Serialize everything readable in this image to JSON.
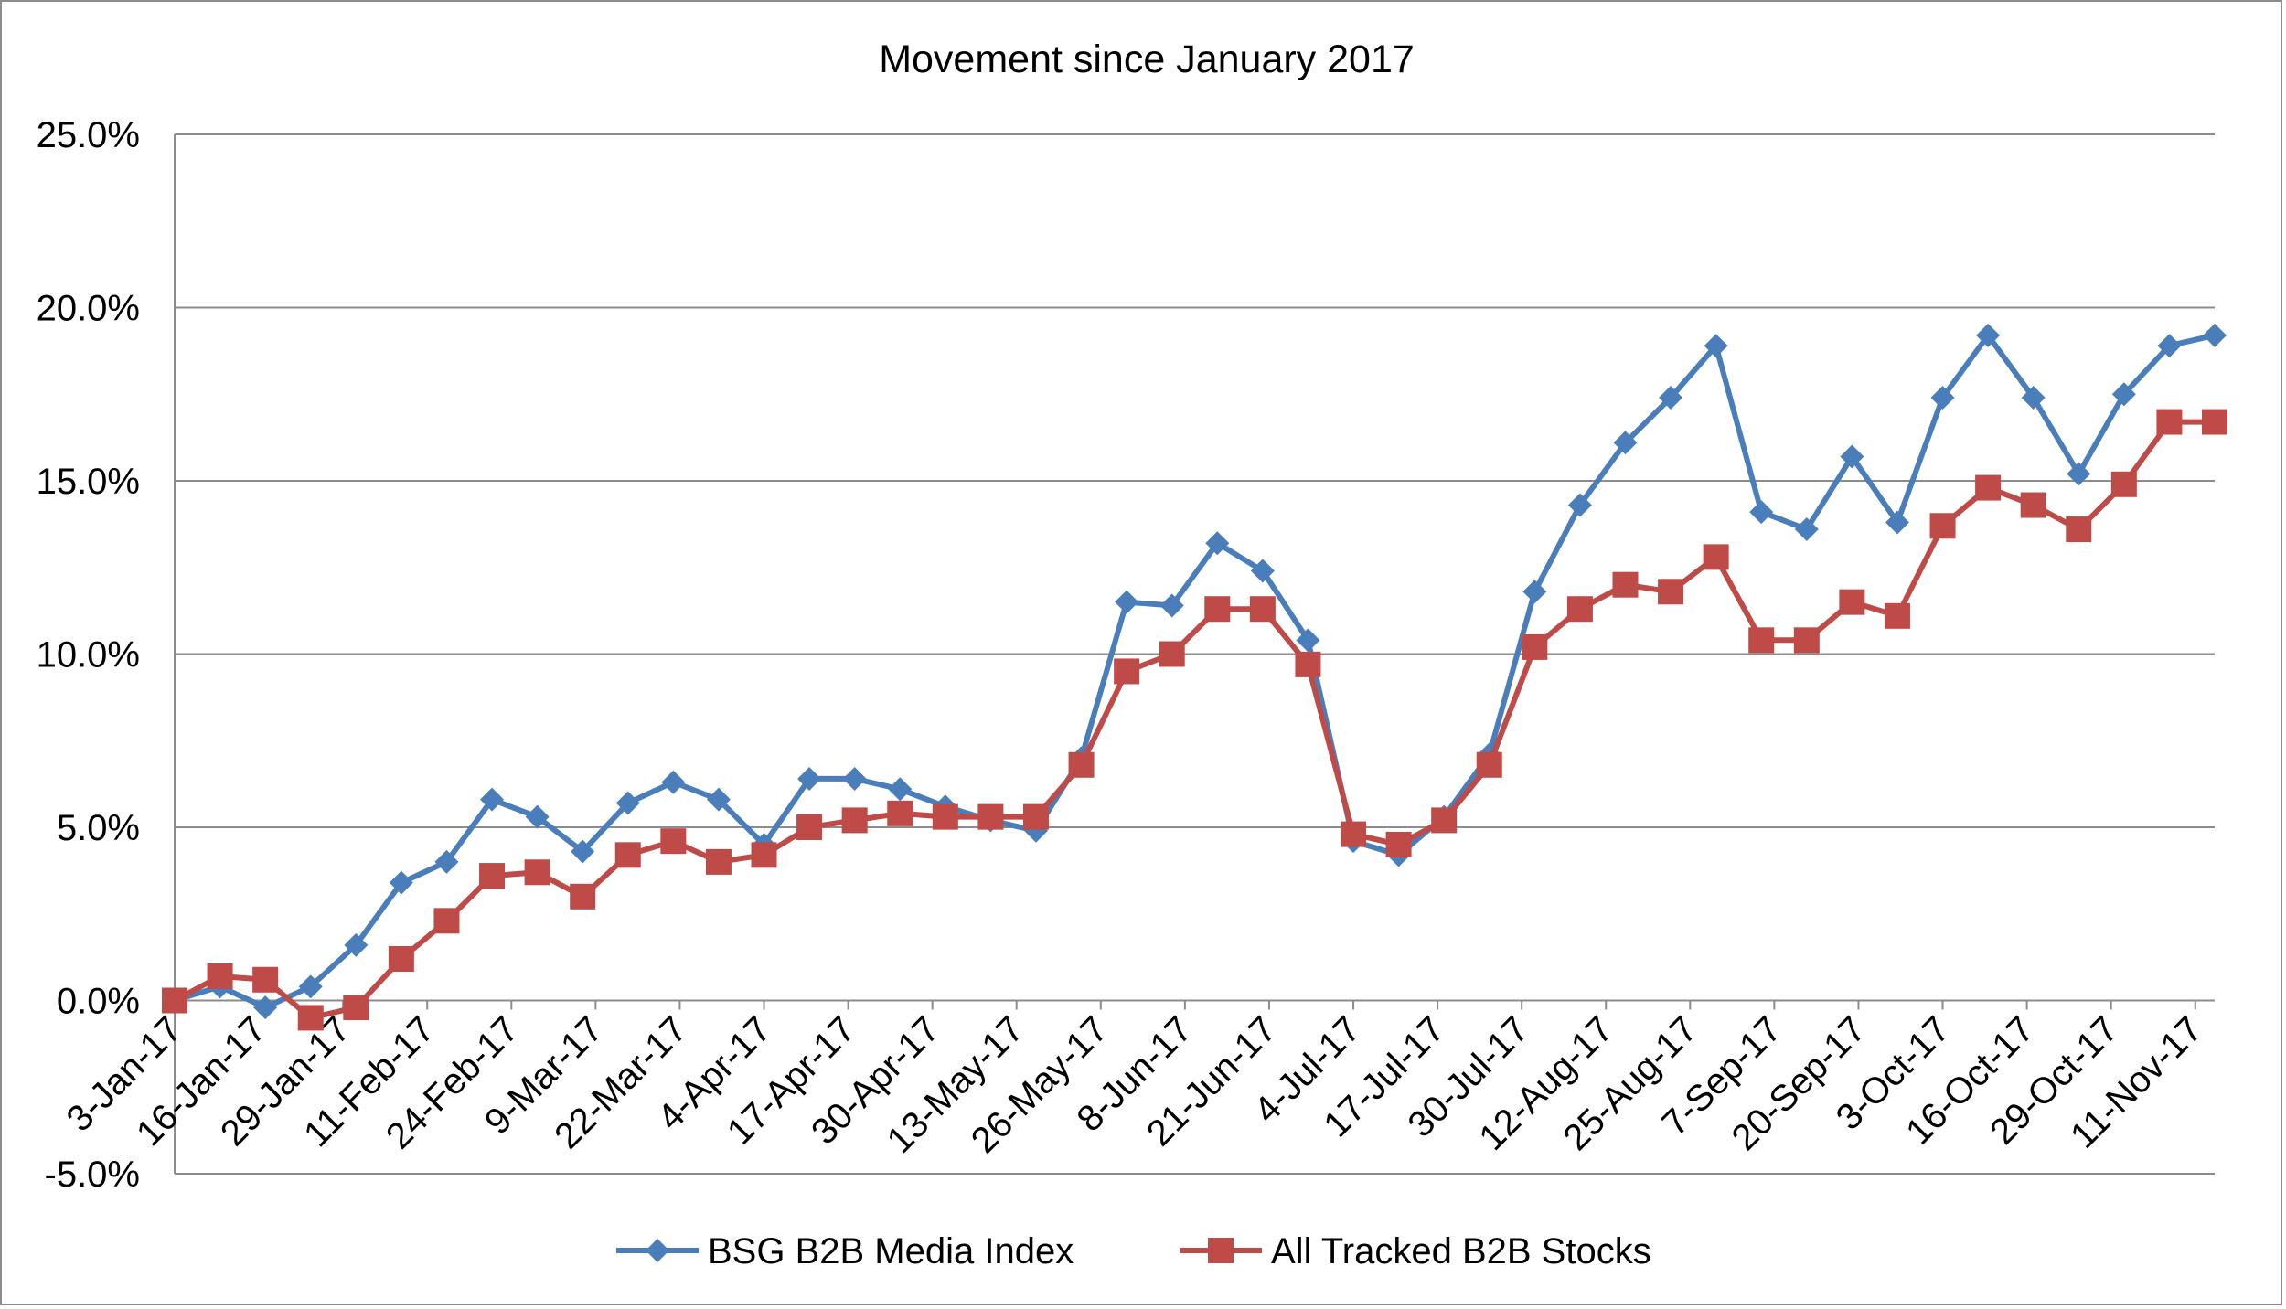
{
  "chart_data": {
    "type": "line",
    "title": "Movement since January 2017",
    "xlabel": "",
    "ylabel": "",
    "ylim": [
      -5.0,
      25.0
    ],
    "y_ticks": [
      "-5.0%",
      "0.0%",
      "5.0%",
      "10.0%",
      "15.0%",
      "20.0%",
      "25.0%"
    ],
    "x_tick_labels": [
      "3-Jan-17",
      "16-Jan-17",
      "29-Jan-17",
      "11-Feb-17",
      "24-Feb-17",
      "9-Mar-17",
      "22-Mar-17",
      "4-Apr-17",
      "17-Apr-17",
      "30-Apr-17",
      "13-May-17",
      "26-May-17",
      "8-Jun-17",
      "21-Jun-17",
      "4-Jul-17",
      "17-Jul-17",
      "30-Jul-17",
      "12-Aug-17",
      "25-Aug-17",
      "7-Sep-17",
      "20-Sep-17",
      "3-Oct-17",
      "16-Oct-17",
      "29-Oct-17",
      "11-Nov-17"
    ],
    "x": [
      "2017-01-03",
      "2017-01-10",
      "2017-01-17",
      "2017-01-24",
      "2017-01-31",
      "2017-02-07",
      "2017-02-14",
      "2017-02-21",
      "2017-02-28",
      "2017-03-07",
      "2017-03-14",
      "2017-03-21",
      "2017-03-28",
      "2017-04-04",
      "2017-04-11",
      "2017-04-18",
      "2017-04-25",
      "2017-05-02",
      "2017-05-09",
      "2017-05-16",
      "2017-05-23",
      "2017-05-30",
      "2017-06-06",
      "2017-06-13",
      "2017-06-20",
      "2017-06-27",
      "2017-07-04",
      "2017-07-11",
      "2017-07-18",
      "2017-07-25",
      "2017-08-01",
      "2017-08-08",
      "2017-08-15",
      "2017-08-22",
      "2017-08-29",
      "2017-09-05",
      "2017-09-12",
      "2017-09-19",
      "2017-09-26",
      "2017-10-03",
      "2017-10-10",
      "2017-10-17",
      "2017-10-24",
      "2017-10-31",
      "2017-11-07",
      "2017-11-14"
    ],
    "series": [
      {
        "name": "BSG B2B Media Index",
        "color": "#4a7ebb",
        "marker": "diamond",
        "values": [
          0.0,
          0.4,
          -0.2,
          0.4,
          1.6,
          3.4,
          4.0,
          5.8,
          5.3,
          4.3,
          5.7,
          6.3,
          5.8,
          4.5,
          6.4,
          6.4,
          6.1,
          5.6,
          5.2,
          4.9,
          7.0,
          11.5,
          11.4,
          13.2,
          12.4,
          10.4,
          4.6,
          4.2,
          5.3,
          7.1,
          11.8,
          14.3,
          16.1,
          17.4,
          18.9,
          14.1,
          13.6,
          15.7,
          13.8,
          17.4,
          19.2,
          17.4,
          15.2,
          17.5,
          18.9,
          19.2
        ]
      },
      {
        "name": "All Tracked B2B Stocks",
        "color": "#be4b48",
        "marker": "square",
        "values": [
          0.0,
          0.7,
          0.6,
          -0.5,
          -0.2,
          1.2,
          2.3,
          3.6,
          3.7,
          3.0,
          4.2,
          4.6,
          4.0,
          4.2,
          5.0,
          5.2,
          5.4,
          5.3,
          5.3,
          5.3,
          6.8,
          9.5,
          10.0,
          11.3,
          11.3,
          9.7,
          4.8,
          4.5,
          5.2,
          6.8,
          10.2,
          11.3,
          12.0,
          11.8,
          12.8,
          10.4,
          10.4,
          11.5,
          11.1,
          13.7,
          14.8,
          14.3,
          13.6,
          14.9,
          16.7,
          16.7
        ]
      }
    ],
    "legend_position": "bottom",
    "grid": true
  }
}
